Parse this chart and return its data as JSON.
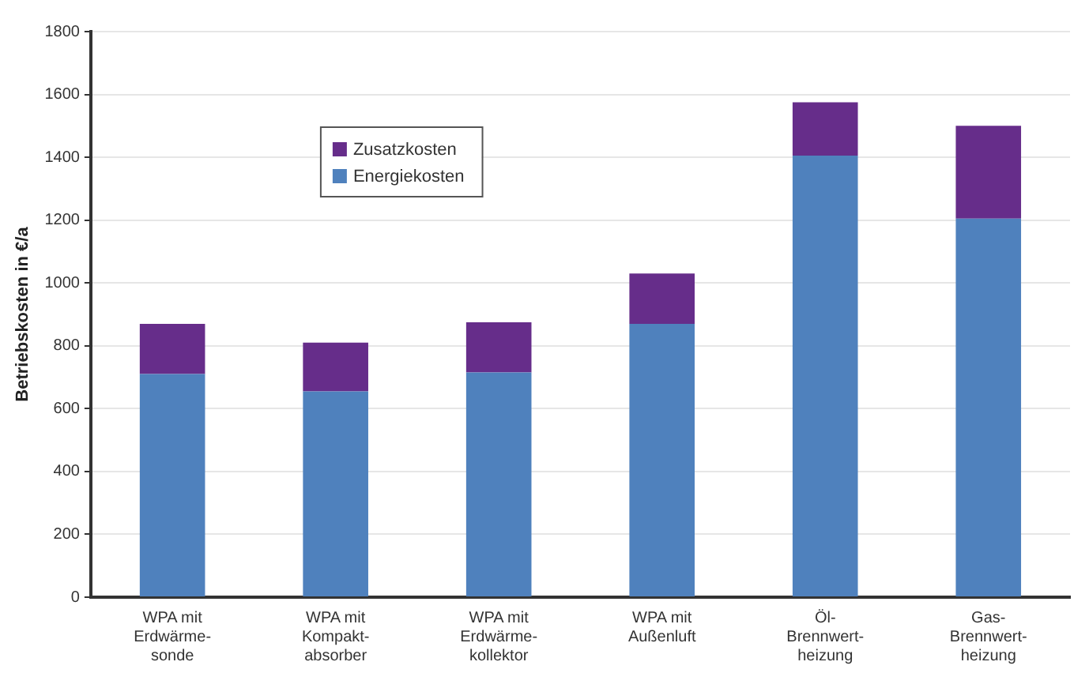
{
  "chart_data": {
    "type": "bar",
    "ylabel": "Betriebskosten in €/a",
    "categories": [
      "WPA mit\nErdwärme-\nsonde",
      "WPA mit\nKompakt-\nabsorber",
      "WPA mit\nErdwärme-\nkollektor",
      "WPA mit\nAußenluft",
      "Öl-\nBrennwert-\nheizung",
      "Gas-\nBrennwert-\nheizung"
    ],
    "series": [
      {
        "name": "Energiekosten",
        "color": "#4f81bd",
        "values": [
          710,
          655,
          715,
          870,
          1405,
          1205
        ]
      },
      {
        "name": "Zusatzkosten",
        "color": "#662d8a",
        "values": [
          160,
          155,
          160,
          160,
          170,
          295
        ]
      }
    ],
    "stacked": true,
    "ylim": [
      0,
      1800
    ],
    "yticks": [
      0,
      200,
      400,
      600,
      800,
      1000,
      1200,
      1400,
      1600,
      1800
    ],
    "grid": "y",
    "legend": "top left"
  }
}
